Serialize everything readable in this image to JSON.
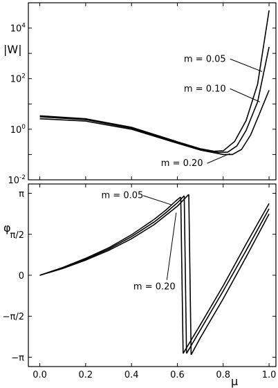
{
  "chart_data": [
    {
      "type": "line",
      "ylabel": "|W|",
      "yscale": "log",
      "ylim": [
        0.01,
        100000
      ],
      "xlim": [
        -0.05,
        1.03
      ],
      "ytick_labels": [
        {
          "base": "10",
          "exp": "-2",
          "value": 0.01
        },
        {
          "base": "10",
          "exp": "0",
          "value": 1
        },
        {
          "base": "10",
          "exp": "2",
          "value": 100
        },
        {
          "base": "10",
          "exp": "4",
          "value": 10000
        }
      ],
      "series": [
        {
          "id": "m005",
          "x": [
            0.0,
            0.2,
            0.4,
            0.6,
            0.7,
            0.76,
            0.8,
            0.85,
            0.9,
            0.95,
            1.0
          ],
          "y": [
            3.4,
            2.6,
            1.2,
            0.32,
            0.17,
            0.135,
            0.14,
            0.33,
            2.2,
            60,
            50000
          ]
        },
        {
          "id": "m010",
          "x": [
            0.0,
            0.2,
            0.4,
            0.6,
            0.7,
            0.78,
            0.82,
            0.86,
            0.9,
            0.95,
            1.0
          ],
          "y": [
            3.1,
            2.4,
            1.1,
            0.3,
            0.16,
            0.12,
            0.125,
            0.22,
            0.9,
            12,
            1800
          ]
        },
        {
          "id": "m020",
          "x": [
            0.0,
            0.2,
            0.4,
            0.6,
            0.7,
            0.8,
            0.84,
            0.88,
            0.92,
            0.96,
            1.0
          ],
          "y": [
            2.6,
            2.1,
            1.0,
            0.28,
            0.15,
            0.1,
            0.1,
            0.16,
            0.6,
            4.5,
            35
          ]
        }
      ],
      "annotations": [
        {
          "text": "m = 0.05",
          "x": 0.83,
          "y": 600,
          "tx": 0.97,
          "ty": 190
        },
        {
          "text": "m = 0.10",
          "x": 0.83,
          "y": 40,
          "tx": 0.96,
          "ty": 12
        },
        {
          "text": "m = 0.20",
          "x": 0.73,
          "y": 0.045,
          "tx": 0.83,
          "ty": 0.11
        }
      ]
    },
    {
      "type": "line",
      "ylabel": "φ",
      "xlabel": "μ",
      "xlim": [
        -0.05,
        1.03
      ],
      "ylim": [
        -3.5,
        3.5
      ],
      "xticks": [
        0.0,
        0.2,
        0.4,
        0.6,
        0.8,
        1.0
      ],
      "xtick_labels": [
        "0.0",
        "0.2",
        "0.4",
        "0.6",
        "0.8",
        "1.0"
      ],
      "yticks": [
        3.14159,
        1.5708,
        0,
        -1.5708,
        -3.14159
      ],
      "ytick_labels": [
        "π",
        "π/2",
        "0",
        "−π/2",
        "−π"
      ],
      "series": [
        {
          "id": "m005",
          "segments": [
            {
              "x": [
                0.0,
                0.1,
                0.2,
                0.3,
                0.4,
                0.5,
                0.55,
                0.6,
                0.615
              ],
              "y": [
                0,
                0.3,
                0.65,
                1.05,
                1.55,
                2.15,
                2.5,
                2.9,
                3.0
              ]
            },
            {
              "x": [
                0.615,
                0.625
              ],
              "y": [
                3.0,
                -3.0
              ]
            },
            {
              "x": [
                0.625,
                0.7,
                0.8,
                0.9,
                1.0
              ],
              "y": [
                -3.0,
                -1.9,
                -0.4,
                1.2,
                2.75
              ]
            }
          ]
        },
        {
          "id": "m010",
          "segments": [
            {
              "x": [
                0.0,
                0.1,
                0.2,
                0.3,
                0.4,
                0.5,
                0.55,
                0.6,
                0.63
              ],
              "y": [
                0,
                0.28,
                0.62,
                1.0,
                1.48,
                2.05,
                2.4,
                2.78,
                3.05
              ]
            },
            {
              "x": [
                0.63,
                0.64
              ],
              "y": [
                3.05,
                -3.0
              ]
            },
            {
              "x": [
                0.64,
                0.7,
                0.8,
                0.9,
                1.0
              ],
              "y": [
                -3.0,
                -2.1,
                -0.6,
                0.95,
                2.55
              ]
            }
          ]
        },
        {
          "id": "m020",
          "segments": [
            {
              "x": [
                0.0,
                0.1,
                0.2,
                0.3,
                0.4,
                0.5,
                0.55,
                0.6,
                0.65
              ],
              "y": [
                0,
                0.26,
                0.58,
                0.95,
                1.4,
                1.95,
                2.3,
                2.65,
                3.1
              ]
            },
            {
              "x": [
                0.65,
                0.66
              ],
              "y": [
                3.1,
                -3.05
              ]
            },
            {
              "x": [
                0.66,
                0.7,
                0.8,
                0.9,
                1.0
              ],
              "y": [
                -3.05,
                -2.4,
                -0.9,
                0.7,
                2.35
              ]
            }
          ]
        }
      ],
      "annotations": [
        {
          "text": "m = 0.05",
          "x": 0.36,
          "y": 2.95,
          "tx": 0.575,
          "ty": 2.7
        },
        {
          "text": "m = 0.20",
          "x": 0.5,
          "y": -0.55,
          "tx": 0.595,
          "ty": 2.4
        }
      ]
    }
  ]
}
